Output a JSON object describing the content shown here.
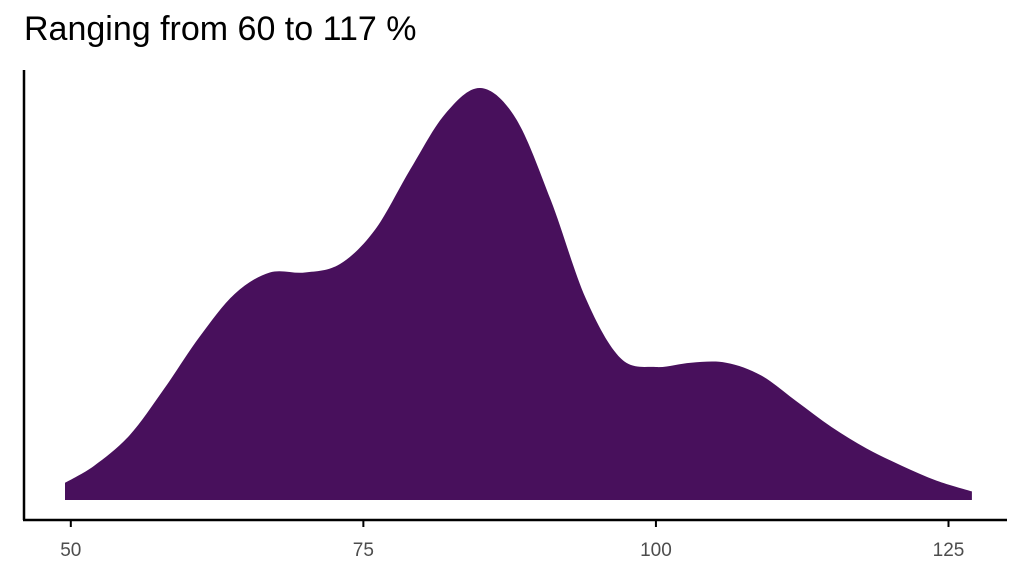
{
  "chart_data": {
    "type": "area",
    "title": "Ranging from 60 to 117 %",
    "xlabel": "",
    "ylabel": "",
    "xlim": [
      46,
      130
    ],
    "ylim": [
      0,
      1
    ],
    "grid": false,
    "legend": "none",
    "fill_color": "#48105c",
    "x_ticks": [
      {
        "value": 50,
        "label": "50"
      },
      {
        "value": 75,
        "label": "75"
      },
      {
        "value": 100,
        "label": "100"
      },
      {
        "value": 125,
        "label": "125"
      }
    ],
    "x": [
      49.5,
      52,
      55,
      58,
      61,
      64,
      67,
      70,
      73,
      76,
      79,
      82,
      85,
      88,
      91,
      94,
      97,
      100,
      103,
      106,
      109,
      112,
      115,
      118,
      121,
      124,
      127
    ],
    "y": [
      0.04,
      0.08,
      0.15,
      0.26,
      0.38,
      0.48,
      0.53,
      0.53,
      0.55,
      0.63,
      0.77,
      0.9,
      0.96,
      0.89,
      0.7,
      0.47,
      0.33,
      0.31,
      0.32,
      0.32,
      0.29,
      0.23,
      0.17,
      0.12,
      0.08,
      0.045,
      0.02
    ]
  }
}
